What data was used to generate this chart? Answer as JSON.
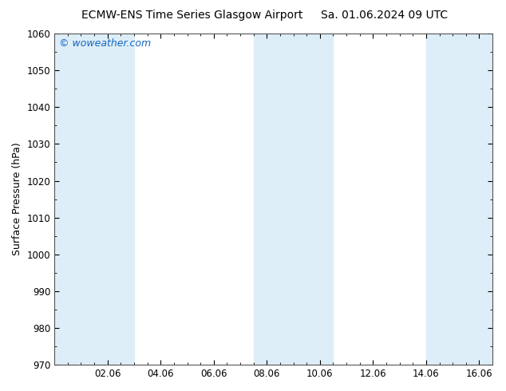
{
  "title_left": "ECMW-ENS Time Series Glasgow Airport",
  "title_right": "Sa. 01.06.2024 09 UTC",
  "ylabel": "Surface Pressure (hPa)",
  "ylim": [
    970,
    1060
  ],
  "yticks": [
    970,
    980,
    990,
    1000,
    1010,
    1020,
    1030,
    1040,
    1050,
    1060
  ],
  "xlim": [
    0.0,
    16.5
  ],
  "xtick_positions": [
    2,
    4,
    6,
    8,
    10,
    12,
    14,
    16
  ],
  "xtick_labels": [
    "02.06",
    "04.06",
    "06.06",
    "08.06",
    "10.06",
    "12.06",
    "14.06",
    "16.06"
  ],
  "watermark": "© woweather.com",
  "watermark_color": "#1565c0",
  "background_color": "#ffffff",
  "plot_bg_color": "#ffffff",
  "shaded_bands": [
    {
      "xmin": 0.0,
      "xmax": 3.0,
      "color": "#ddeef8"
    },
    {
      "xmin": 7.5,
      "xmax": 10.5,
      "color": "#ddeef8"
    },
    {
      "xmin": 14.0,
      "xmax": 16.5,
      "color": "#ddeef8"
    }
  ],
  "title_fontsize": 10,
  "ylabel_fontsize": 9,
  "tick_fontsize": 8.5,
  "watermark_fontsize": 9
}
